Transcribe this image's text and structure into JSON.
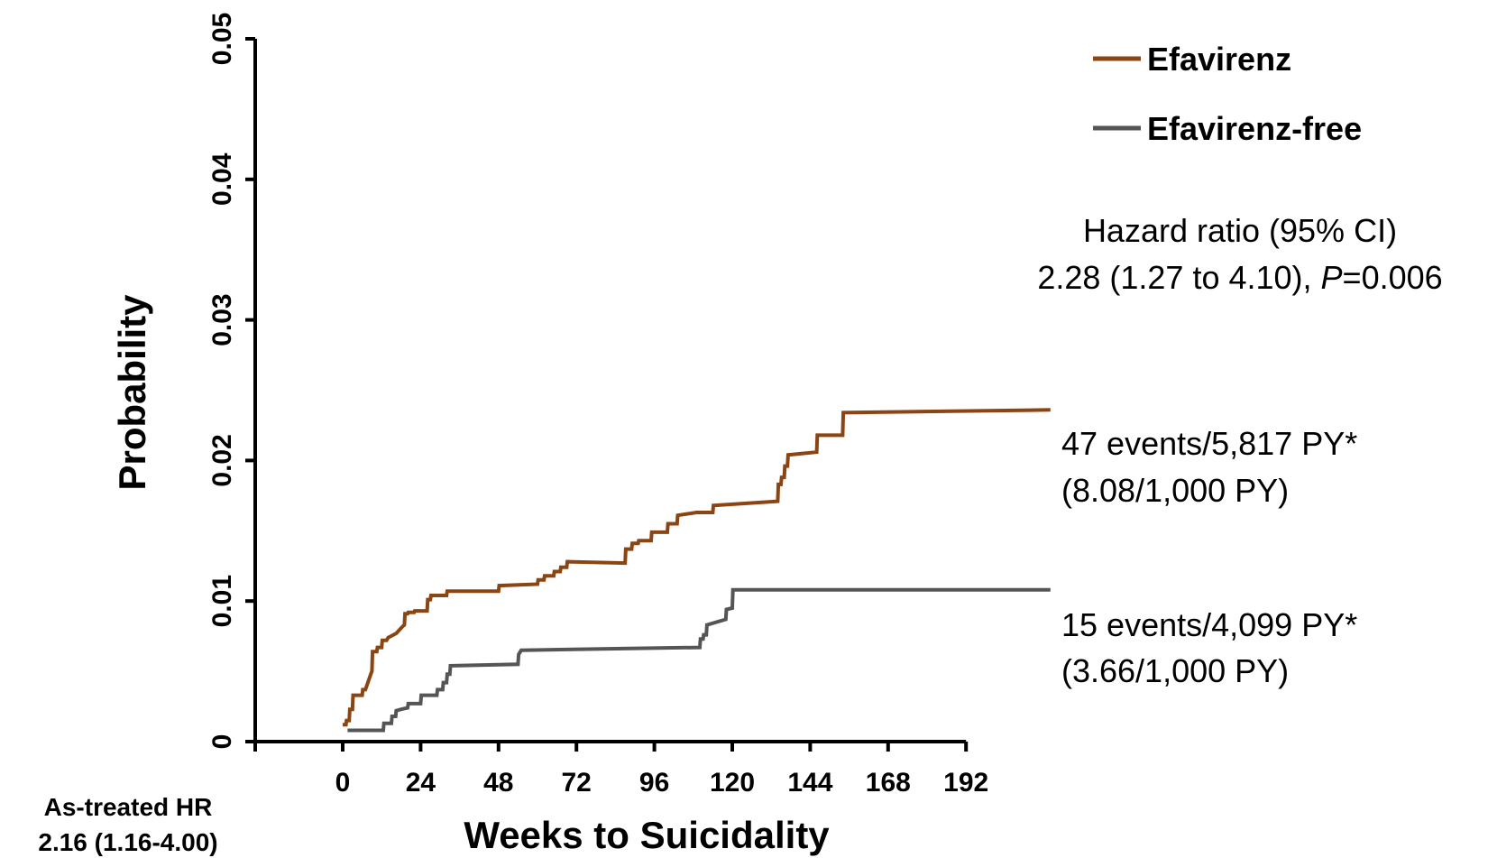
{
  "chart_data": {
    "type": "line",
    "step": true,
    "xlabel": "Weeks to Suicidality",
    "ylabel": "Probability",
    "xlim": [
      -24,
      192
    ],
    "ylim": [
      0,
      0.05
    ],
    "x_ticks": [
      0,
      24,
      48,
      72,
      96,
      120,
      144,
      168,
      192
    ],
    "x_tick_labels": [
      "0",
      "24",
      "48",
      "72",
      "96",
      "120",
      "144",
      "168",
      "192"
    ],
    "y_ticks": [
      0,
      0.01,
      0.02,
      0.03,
      0.04,
      0.05
    ],
    "y_tick_labels": [
      "0",
      "0.01",
      "0.02",
      "0.03",
      "0.04",
      "0.05"
    ],
    "legend_position": "top-right",
    "series": [
      {
        "name": "Efavirenz",
        "color": "#8B4513",
        "points": [
          [
            0,
            0.0012
          ],
          [
            1,
            0.0012
          ],
          [
            1.2,
            0.0015
          ],
          [
            2,
            0.0015
          ],
          [
            2.2,
            0.0023
          ],
          [
            3,
            0.0023
          ],
          [
            3.2,
            0.0033
          ],
          [
            6,
            0.0033
          ],
          [
            6.2,
            0.0037
          ],
          [
            7,
            0.0037
          ],
          [
            8.5,
            0.0047
          ],
          [
            9,
            0.005
          ],
          [
            9.2,
            0.0064
          ],
          [
            10.5,
            0.0064
          ],
          [
            10.7,
            0.0067
          ],
          [
            12,
            0.0067
          ],
          [
            12.2,
            0.0072
          ],
          [
            13.5,
            0.0072
          ],
          [
            14,
            0.0074
          ],
          [
            16.5,
            0.0077
          ],
          [
            18.5,
            0.0082
          ],
          [
            19,
            0.0083
          ],
          [
            19.2,
            0.0091
          ],
          [
            20,
            0.0091
          ],
          [
            20.2,
            0.0092
          ],
          [
            22,
            0.0092
          ],
          [
            22.2,
            0.0093
          ],
          [
            26,
            0.0093
          ],
          [
            26.2,
            0.0101
          ],
          [
            27,
            0.0101
          ],
          [
            27.2,
            0.0104
          ],
          [
            32,
            0.0104
          ],
          [
            32.2,
            0.0107
          ],
          [
            48,
            0.0107
          ],
          [
            48.2,
            0.0111
          ],
          [
            60,
            0.0112
          ],
          [
            60.2,
            0.0115
          ],
          [
            62,
            0.0115
          ],
          [
            62.2,
            0.0118
          ],
          [
            65,
            0.0118
          ],
          [
            65.2,
            0.0121
          ],
          [
            67,
            0.0121
          ],
          [
            67.2,
            0.0124
          ],
          [
            69,
            0.0124
          ],
          [
            69.2,
            0.0128
          ],
          [
            87,
            0.0127
          ],
          [
            87.2,
            0.0137
          ],
          [
            89,
            0.0137
          ],
          [
            89.2,
            0.0141
          ],
          [
            91,
            0.0141
          ],
          [
            91.2,
            0.0143
          ],
          [
            95,
            0.0143
          ],
          [
            95.2,
            0.0149
          ],
          [
            100,
            0.0149
          ],
          [
            100.2,
            0.0155
          ],
          [
            103,
            0.0155
          ],
          [
            103.2,
            0.0161
          ],
          [
            109,
            0.0163
          ],
          [
            114,
            0.0163
          ],
          [
            114.2,
            0.0168
          ],
          [
            134,
            0.0171
          ],
          [
            134.2,
            0.0183
          ],
          [
            135,
            0.0183
          ],
          [
            135.2,
            0.0188
          ],
          [
            136,
            0.0188
          ],
          [
            136.2,
            0.0196
          ],
          [
            137,
            0.0196
          ],
          [
            137.2,
            0.0204
          ],
          [
            146,
            0.0206
          ],
          [
            146.2,
            0.0218
          ],
          [
            154,
            0.0218
          ],
          [
            154.2,
            0.0234
          ],
          [
            218,
            0.0236
          ]
        ]
      },
      {
        "name": "Efavirenz-free",
        "color": "#555555",
        "points": [
          [
            1.5,
            0.0008
          ],
          [
            12.5,
            0.0008
          ],
          [
            12.7,
            0.0013
          ],
          [
            15,
            0.0013
          ],
          [
            15.2,
            0.0018
          ],
          [
            16.3,
            0.0018
          ],
          [
            16.5,
            0.0022
          ],
          [
            18,
            0.0023
          ],
          [
            20,
            0.0024
          ],
          [
            20.2,
            0.0027
          ],
          [
            24,
            0.0027
          ],
          [
            24.2,
            0.0033
          ],
          [
            29,
            0.0033
          ],
          [
            29.2,
            0.0037
          ],
          [
            30.8,
            0.0037
          ],
          [
            31,
            0.0042
          ],
          [
            32,
            0.0042
          ],
          [
            32.2,
            0.0048
          ],
          [
            33,
            0.0048
          ],
          [
            33.2,
            0.0054
          ],
          [
            54,
            0.0055
          ],
          [
            54.2,
            0.0062
          ],
          [
            55,
            0.0065
          ],
          [
            110,
            0.0067
          ],
          [
            110.2,
            0.0073
          ],
          [
            111,
            0.0073
          ],
          [
            111.2,
            0.0076
          ],
          [
            112,
            0.0076
          ],
          [
            112.2,
            0.0083
          ],
          [
            118,
            0.0087
          ],
          [
            118.2,
            0.0094
          ],
          [
            120,
            0.0095
          ],
          [
            120.2,
            0.0108
          ],
          [
            218,
            0.0108
          ]
        ]
      }
    ],
    "annotations": {
      "hazard_ratio_title": "Hazard ratio (95% CI)",
      "hazard_ratio_value": "2.28 (1.27 to 4.10), ",
      "hazard_ratio_p_symbol": "P",
      "hazard_ratio_p_value": "=0.006",
      "efavirenz_events": "47 events/5,817 PY*",
      "efavirenz_rate": "(8.08/1,000 PY)",
      "efavirenz_free_events": "15 events/4,099 PY*",
      "efavirenz_free_rate": "(3.66/1,000 PY)",
      "as_treated_title": "As-treated HR",
      "as_treated_value": "2.16 (1.16-4.00)"
    }
  }
}
